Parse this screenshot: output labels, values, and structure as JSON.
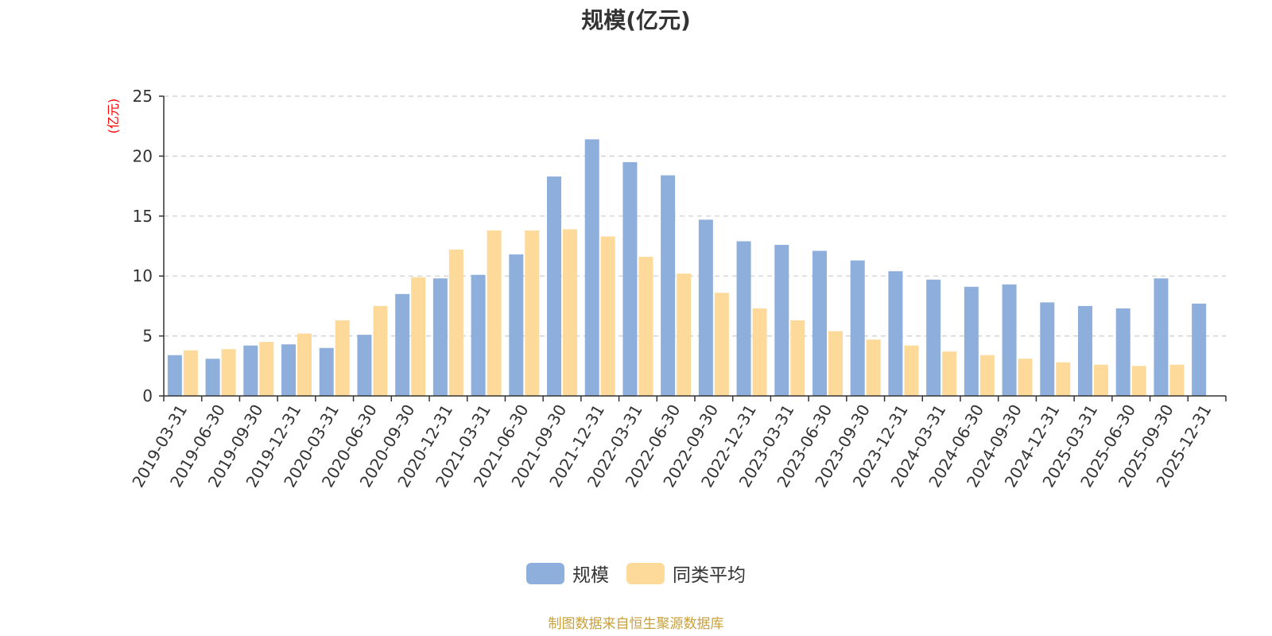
{
  "chart_data": {
    "type": "bar",
    "title": "规模(亿元)",
    "ylabel": "(亿元)",
    "xlabel": "",
    "ylim": [
      0,
      25
    ],
    "yticks": [
      0,
      5,
      10,
      15,
      20,
      25
    ],
    "grid": true,
    "legend_position": "bottom",
    "categories": [
      "2019-03-31",
      "2019-06-30",
      "2019-09-30",
      "2019-12-31",
      "2020-03-31",
      "2020-06-30",
      "2020-09-30",
      "2020-12-31",
      "2021-03-31",
      "2021-06-30",
      "2021-09-30",
      "2021-12-31",
      "2022-03-31",
      "2022-06-30",
      "2022-09-30",
      "2022-12-31",
      "2023-03-31",
      "2023-06-30",
      "2023-09-30",
      "2023-12-31",
      "2024-03-31",
      "2024-06-30",
      "2024-09-30",
      "2024-12-31",
      "2025-03-31",
      "2025-06-30",
      "2025-09-30",
      "2025-12-31"
    ],
    "series": [
      {
        "name": "规模",
        "color": "#8eaedb",
        "values": [
          3.4,
          3.1,
          4.2,
          4.3,
          4.0,
          5.1,
          8.5,
          9.8,
          10.1,
          11.8,
          18.3,
          21.4,
          19.5,
          18.4,
          14.7,
          12.9,
          12.6,
          12.1,
          11.3,
          10.4,
          9.7,
          9.1,
          9.3,
          7.8,
          7.5,
          7.3,
          9.8,
          7.7
        ]
      },
      {
        "name": "同类平均",
        "color": "#fdd99a",
        "values": [
          3.8,
          3.9,
          4.5,
          5.2,
          6.3,
          7.5,
          9.9,
          12.2,
          13.8,
          13.8,
          13.9,
          13.3,
          11.6,
          10.2,
          8.6,
          7.3,
          6.3,
          5.4,
          4.7,
          4.2,
          3.7,
          3.4,
          3.1,
          2.8,
          2.6,
          2.5,
          2.6,
          null
        ]
      }
    ]
  },
  "colors": {
    "axis": "#333333",
    "grid": "#cccccc",
    "ylabel": "#ff0000",
    "source": "#c8a03c"
  },
  "source_note": "制图数据来自恒生聚源数据库"
}
